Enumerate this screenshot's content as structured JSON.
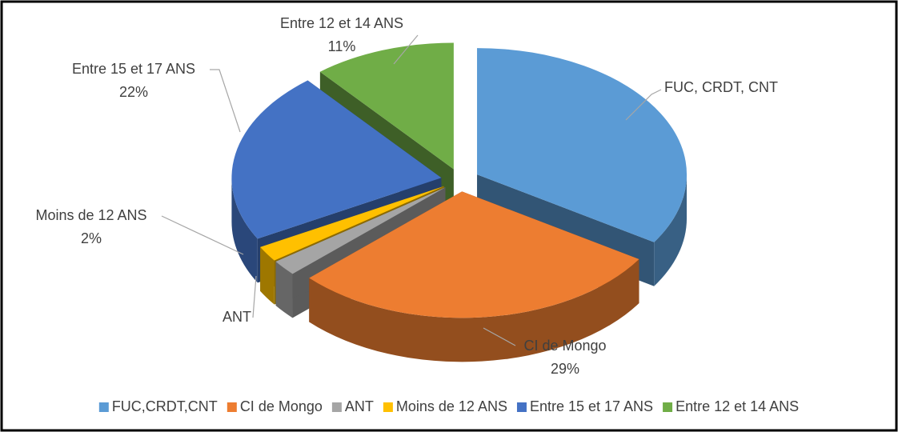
{
  "chart_data": {
    "type": "pie3d",
    "categories": [
      "FUC,CRDT,CNT",
      "CI de Mongo",
      "ANT",
      "Moins de 12 ANS",
      "Entre 15 et 17 ANS",
      "Entre 12 et 14 ANS"
    ],
    "slice_labels": [
      "FUC, CRDT, CNT",
      "CI de Mongo",
      "ANT",
      "Moins de 12 ANS",
      "Entre 15 et 17 ANS",
      "Entre 12 et 14 ANS"
    ],
    "values": [
      34,
      29,
      2,
      2,
      22,
      11
    ],
    "value_labels": [
      null,
      "29%",
      null,
      "2%",
      "22%",
      "11%"
    ],
    "colors": [
      "#5b9bd5",
      "#ed7d31",
      "#a5a5a5",
      "#ffc000",
      "#4472c4",
      "#70ad47"
    ],
    "legend": "bottom"
  }
}
